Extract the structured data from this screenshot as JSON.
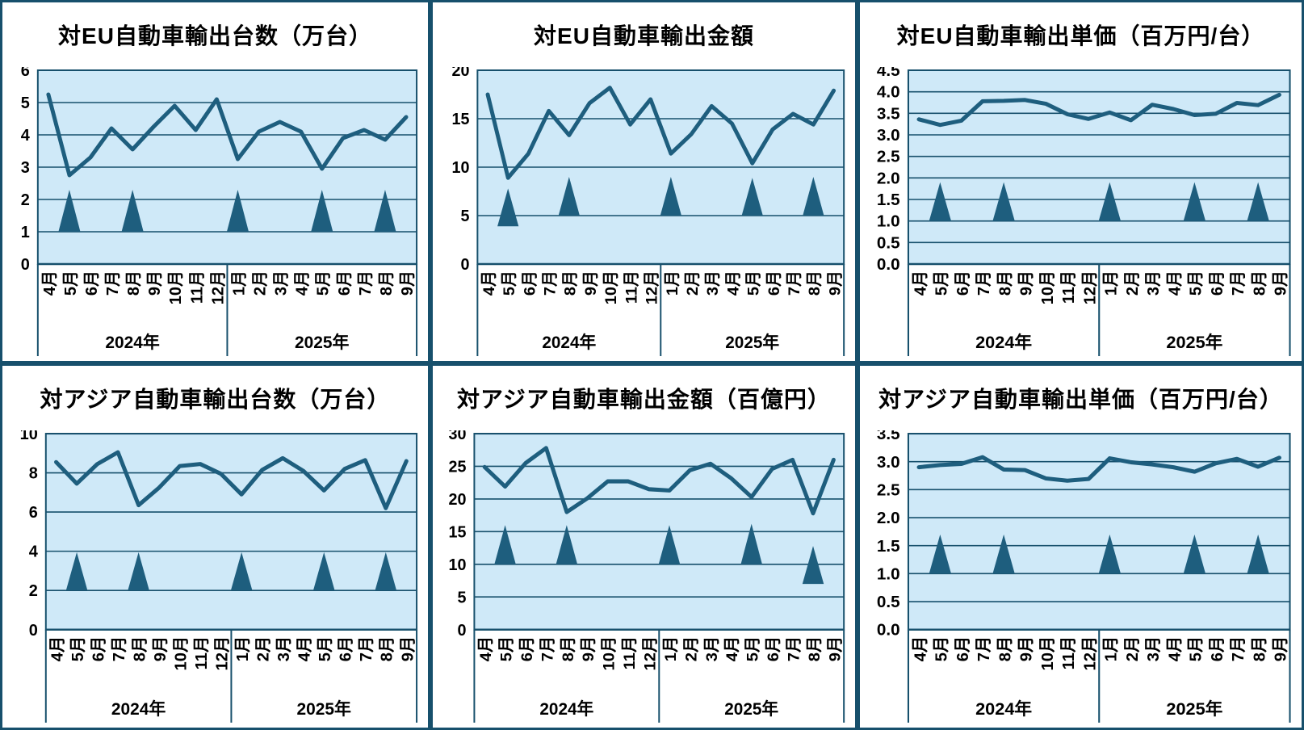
{
  "colors": {
    "line": "#1e5e7e",
    "grid": "#17506c",
    "plot_bg": "#cfe9f8",
    "panel_border": "#17506c",
    "text": "#000000",
    "page_bg": "#ffffff"
  },
  "year_groups": [
    {
      "label": "2024年",
      "count": 9
    },
    {
      "label": "2025年",
      "count": 9
    }
  ],
  "chart_data": [
    {
      "type": "line",
      "title": "対EU自動車輸出台数（万台）",
      "categories": [
        "4月",
        "5月",
        "6月",
        "7月",
        "8月",
        "9月",
        "10月",
        "11月",
        "12月",
        "1月",
        "2月",
        "3月",
        "4月",
        "5月",
        "6月",
        "7月",
        "8月",
        "9月"
      ],
      "values": [
        5.25,
        2.75,
        3.3,
        4.2,
        3.55,
        4.25,
        4.9,
        4.15,
        5.1,
        3.25,
        4.1,
        4.4,
        4.1,
        2.95,
        3.9,
        4.15,
        3.85,
        4.55
      ],
      "ylim": [
        0,
        6
      ],
      "ystep": 1,
      "ydecimals": 0,
      "grid": true,
      "legend": "none",
      "markers": [
        {
          "index": 1,
          "base": 1.0,
          "peak": 2.3
        },
        {
          "index": 4,
          "base": 1.0,
          "peak": 2.3
        },
        {
          "index": 9,
          "base": 1.0,
          "peak": 2.3
        },
        {
          "index": 13,
          "base": 1.0,
          "peak": 2.3
        },
        {
          "index": 16,
          "base": 1.0,
          "peak": 2.3
        }
      ]
    },
    {
      "type": "line",
      "title": "対EU自動車輸出金額",
      "categories": [
        "4月",
        "5月",
        "6月",
        "7月",
        "8月",
        "9月",
        "10月",
        "11月",
        "12月",
        "1月",
        "2月",
        "3月",
        "4月",
        "5月",
        "6月",
        "7月",
        "8月",
        "9月"
      ],
      "values": [
        17.5,
        8.9,
        11.4,
        15.8,
        13.3,
        16.6,
        18.2,
        14.4,
        17.0,
        11.4,
        13.4,
        16.3,
        14.5,
        10.4,
        13.9,
        15.5,
        14.4,
        17.9
      ],
      "ylim": [
        0,
        20
      ],
      "ystep": 5,
      "ydecimals": 0,
      "grid": true,
      "legend": "none",
      "markers": [
        {
          "index": 1,
          "base": 3.9,
          "peak": 7.8
        },
        {
          "index": 4,
          "base": 5.0,
          "peak": 9.0
        },
        {
          "index": 9,
          "base": 5.0,
          "peak": 9.0
        },
        {
          "index": 13,
          "base": 5.0,
          "peak": 8.9
        },
        {
          "index": 16,
          "base": 5.0,
          "peak": 9.0
        }
      ]
    },
    {
      "type": "line",
      "title": "対EU自動車輸出単価（百万円/台）",
      "categories": [
        "4月",
        "5月",
        "6月",
        "7月",
        "8月",
        "9月",
        "10月",
        "11月",
        "12月",
        "1月",
        "2月",
        "3月",
        "4月",
        "5月",
        "6月",
        "7月",
        "8月",
        "9月"
      ],
      "values": [
        3.36,
        3.23,
        3.33,
        3.78,
        3.79,
        3.81,
        3.72,
        3.48,
        3.37,
        3.52,
        3.34,
        3.7,
        3.6,
        3.46,
        3.49,
        3.74,
        3.69,
        3.93
      ],
      "ylim": [
        0,
        4.5
      ],
      "ystep": 0.5,
      "ydecimals": 1,
      "grid": true,
      "legend": "none",
      "markers": [
        {
          "index": 1,
          "base": 1.0,
          "peak": 1.9
        },
        {
          "index": 4,
          "base": 1.0,
          "peak": 1.9
        },
        {
          "index": 9,
          "base": 1.0,
          "peak": 1.9
        },
        {
          "index": 13,
          "base": 1.0,
          "peak": 1.9
        },
        {
          "index": 16,
          "base": 1.0,
          "peak": 1.9
        }
      ]
    },
    {
      "type": "line",
      "title": "対アジア自動車輸出台数（万台）",
      "categories": [
        "4月",
        "5月",
        "6月",
        "7月",
        "8月",
        "9月",
        "10月",
        "11月",
        "12月",
        "1月",
        "2月",
        "3月",
        "4月",
        "5月",
        "6月",
        "7月",
        "8月",
        "9月"
      ],
      "values": [
        8.55,
        7.45,
        8.45,
        9.05,
        6.35,
        7.25,
        8.35,
        8.45,
        7.95,
        6.9,
        8.15,
        8.75,
        8.1,
        7.1,
        8.2,
        8.65,
        6.2,
        8.6
      ],
      "ylim": [
        0,
        10
      ],
      "ystep": 2,
      "ydecimals": 0,
      "grid": true,
      "legend": "none",
      "markers": [
        {
          "index": 1,
          "base": 2.0,
          "peak": 3.95
        },
        {
          "index": 4,
          "base": 2.0,
          "peak": 3.95
        },
        {
          "index": 9,
          "base": 2.0,
          "peak": 3.95
        },
        {
          "index": 13,
          "base": 2.0,
          "peak": 3.95
        },
        {
          "index": 16,
          "base": 2.0,
          "peak": 3.95
        }
      ]
    },
    {
      "type": "line",
      "title": "対アジア自動車輸出金額（百億円）",
      "categories": [
        "4月",
        "5月",
        "6月",
        "7月",
        "8月",
        "9月",
        "10月",
        "11月",
        "12月",
        "1月",
        "2月",
        "3月",
        "4月",
        "5月",
        "6月",
        "7月",
        "8月",
        "9月"
      ],
      "values": [
        24.9,
        21.9,
        25.5,
        27.8,
        18.0,
        20.1,
        22.7,
        22.7,
        21.5,
        21.3,
        24.4,
        25.4,
        23.2,
        20.3,
        24.6,
        26.0,
        17.8,
        26.0
      ],
      "ylim": [
        0,
        30
      ],
      "ystep": 5,
      "ydecimals": 0,
      "grid": true,
      "legend": "none",
      "markers": [
        {
          "index": 1,
          "base": 10.0,
          "peak": 16.0
        },
        {
          "index": 4,
          "base": 10.0,
          "peak": 16.0
        },
        {
          "index": 9,
          "base": 10.0,
          "peak": 16.0
        },
        {
          "index": 13,
          "base": 10.0,
          "peak": 16.2
        },
        {
          "index": 16,
          "base": 7.0,
          "peak": 12.8
        }
      ]
    },
    {
      "type": "line",
      "title": "対アジア自動車輸出単価（百万円/台）",
      "categories": [
        "4月",
        "5月",
        "6月",
        "7月",
        "8月",
        "9月",
        "10月",
        "11月",
        "12月",
        "1月",
        "2月",
        "3月",
        "4月",
        "5月",
        "6月",
        "7月",
        "8月",
        "9月"
      ],
      "values": [
        2.9,
        2.94,
        2.96,
        3.08,
        2.86,
        2.85,
        2.7,
        2.66,
        2.69,
        3.06,
        2.99,
        2.95,
        2.9,
        2.82,
        2.97,
        3.05,
        2.91,
        3.07
      ],
      "ylim": [
        0,
        3.5
      ],
      "ystep": 0.5,
      "ydecimals": 1,
      "grid": true,
      "legend": "none",
      "markers": [
        {
          "index": 1,
          "base": 1.0,
          "peak": 1.7
        },
        {
          "index": 4,
          "base": 1.0,
          "peak": 1.7
        },
        {
          "index": 9,
          "base": 1.0,
          "peak": 1.7
        },
        {
          "index": 13,
          "base": 1.0,
          "peak": 1.7
        },
        {
          "index": 16,
          "base": 1.0,
          "peak": 1.7
        }
      ]
    }
  ]
}
